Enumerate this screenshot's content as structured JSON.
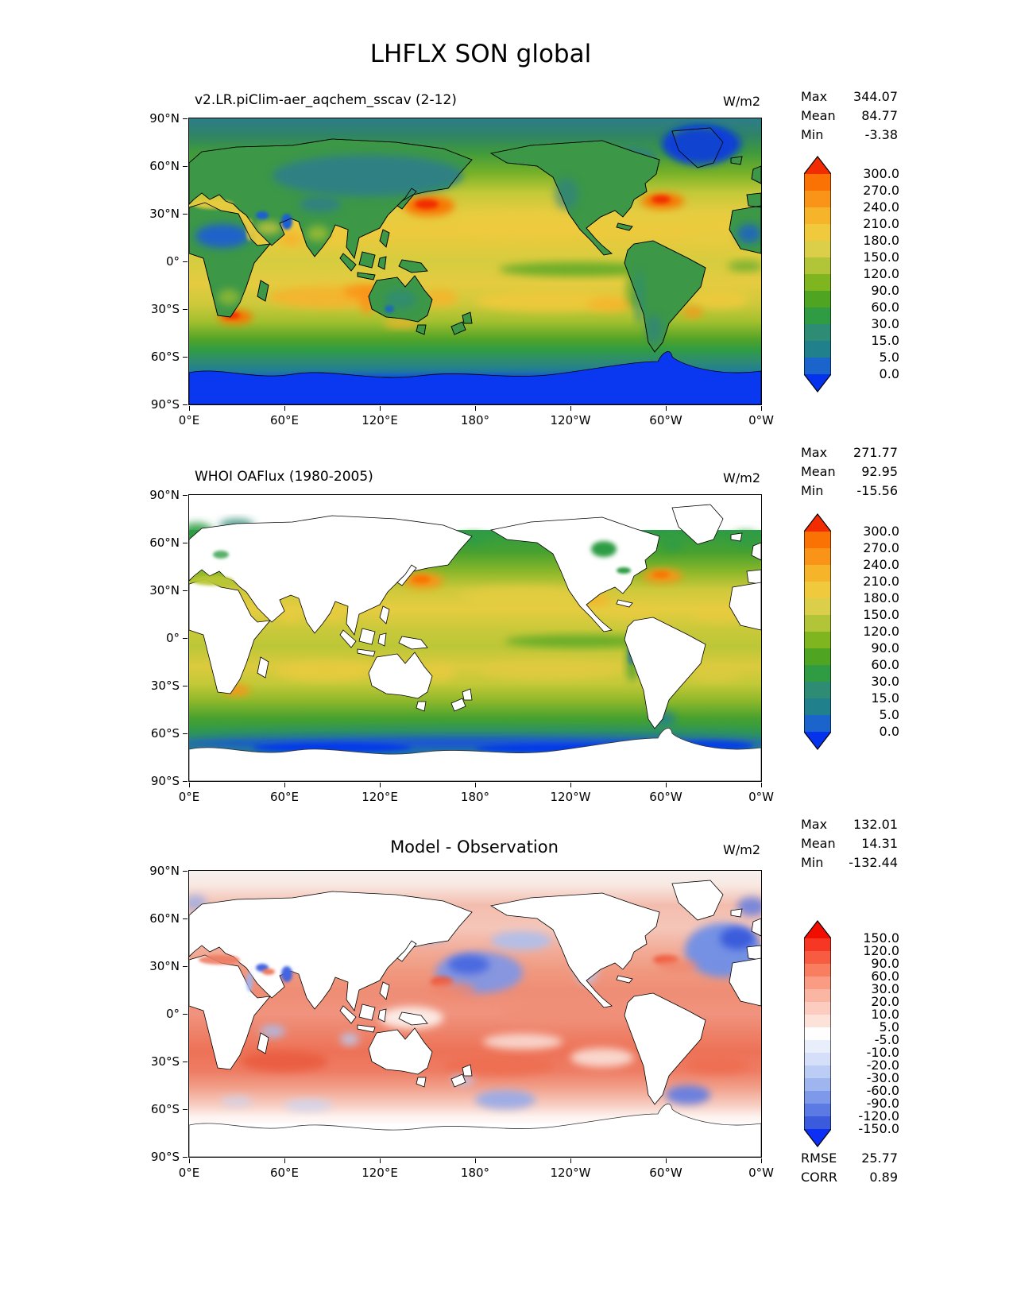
{
  "figure": {
    "title": "LHFLX SON global",
    "background": "#ffffff"
  },
  "axes": {
    "lon_ticks": [
      "0°E",
      "60°E",
      "120°E",
      "180°",
      "120°W",
      "60°W",
      "0°W"
    ],
    "lat_ticks": [
      "90°N",
      "60°N",
      "30°N",
      "0°",
      "30°S",
      "60°S",
      "90°S"
    ]
  },
  "panels": [
    {
      "title": "v2.LR.piClim-aer_aqchem_sscav (2-12)",
      "units": "W/m2",
      "stats": [
        {
          "label": "Max",
          "value": "344.07"
        },
        {
          "label": "Mean",
          "value": "84.77"
        },
        {
          "label": "Min",
          "value": "-3.38"
        }
      ]
    },
    {
      "title": "WHOI OAFlux (1980-2005)",
      "units": "W/m2",
      "stats": [
        {
          "label": "Max",
          "value": "271.77"
        },
        {
          "label": "Mean",
          "value": "92.95"
        },
        {
          "label": "Min",
          "value": "-15.56"
        }
      ]
    },
    {
      "title": "Model - Observation",
      "units": "W/m2",
      "stats": [
        {
          "label": "Max",
          "value": "132.01"
        },
        {
          "label": "Mean",
          "value": "14.31"
        },
        {
          "label": "Min",
          "value": "-132.44"
        }
      ],
      "metrics": [
        {
          "label": "RMSE",
          "value": "25.77"
        },
        {
          "label": "CORR",
          "value": "0.89"
        }
      ]
    }
  ],
  "colorbars": [
    {
      "ticks": [
        "300.0",
        "270.0",
        "240.0",
        "210.0",
        "180.0",
        "150.0",
        "120.0",
        "90.0",
        "60.0",
        "30.0",
        "15.0",
        "5.0",
        "0.0"
      ],
      "colors": [
        "#f22b00",
        "#fa7204",
        "#fa9419",
        "#f6b42b",
        "#f0c93c",
        "#dbce49",
        "#b2c437",
        "#7fb51f",
        "#4fa521",
        "#2f9c44",
        "#2e8b74",
        "#20808c",
        "#1b64cc",
        "#0533ed"
      ]
    },
    {
      "ticks": [
        "300.0",
        "270.0",
        "240.0",
        "210.0",
        "180.0",
        "150.0",
        "120.0",
        "90.0",
        "60.0",
        "30.0",
        "15.0",
        "5.0",
        "0.0"
      ],
      "colors": [
        "#f22b00",
        "#fa7204",
        "#fa9419",
        "#f6b42b",
        "#f0c93c",
        "#dbce49",
        "#b2c437",
        "#7fb51f",
        "#4fa521",
        "#2f9c44",
        "#2e8b74",
        "#20808c",
        "#1b64cc",
        "#0533ed"
      ]
    },
    {
      "ticks": [
        "150.0",
        "120.0",
        "90.0",
        "60.0",
        "30.0",
        "20.0",
        "10.0",
        "5.0",
        "-5.0",
        "-10.0",
        "-20.0",
        "-30.0",
        "-60.0",
        "-90.0",
        "-120.0",
        "-150.0"
      ],
      "colors": [
        "#f10e00",
        "#f63723",
        "#f75b41",
        "#f97e60",
        "#fa9c83",
        "#fbb5a3",
        "#fcccc0",
        "#fde2da",
        "#fefefe",
        "#e9eefb",
        "#d5dff9",
        "#bccdf5",
        "#9fb5f0",
        "#7e98ea",
        "#5c7ae4",
        "#3a5bdc",
        "#0c2ff5"
      ]
    }
  ],
  "chart_data": [
    {
      "type": "heatmap",
      "title": "v2.LR.piClim-aer_aqchem_sscav (2-12)",
      "variable": "LHFLX",
      "season": "SON",
      "region": "global",
      "units": "W/m2",
      "x_ticks": [
        "0°E",
        "60°E",
        "120°E",
        "180°",
        "120°W",
        "60°W",
        "0°W"
      ],
      "y_ticks": [
        "90°N",
        "60°N",
        "30°N",
        "0°",
        "30°S",
        "60°S",
        "90°S"
      ],
      "levels": [
        0.0,
        5.0,
        15.0,
        30.0,
        60.0,
        90.0,
        120.0,
        150.0,
        180.0,
        210.0,
        240.0,
        270.0,
        300.0
      ],
      "stats": {
        "max": 344.07,
        "mean": 84.77,
        "min": -3.38
      }
    },
    {
      "type": "heatmap",
      "title": "WHOI OAFlux (1980-2005)",
      "variable": "LHFLX",
      "season": "SON",
      "region": "global",
      "units": "W/m2",
      "x_ticks": [
        "0°E",
        "60°E",
        "120°E",
        "180°",
        "120°W",
        "60°W",
        "0°W"
      ],
      "y_ticks": [
        "90°N",
        "60°N",
        "30°N",
        "0°",
        "30°S",
        "60°S",
        "90°S"
      ],
      "levels": [
        0.0,
        5.0,
        15.0,
        30.0,
        60.0,
        90.0,
        120.0,
        150.0,
        180.0,
        210.0,
        240.0,
        270.0,
        300.0
      ],
      "stats": {
        "max": 271.77,
        "mean": 92.95,
        "min": -15.56
      }
    },
    {
      "type": "heatmap",
      "title": "Model - Observation",
      "variable": "LHFLX difference",
      "season": "SON",
      "region": "global",
      "units": "W/m2",
      "x_ticks": [
        "0°E",
        "60°E",
        "120°E",
        "180°",
        "120°W",
        "60°W",
        "0°W"
      ],
      "y_ticks": [
        "90°N",
        "60°N",
        "30°N",
        "0°",
        "30°S",
        "60°S",
        "90°S"
      ],
      "levels": [
        -150.0,
        -120.0,
        -90.0,
        -60.0,
        -30.0,
        -20.0,
        -10.0,
        -5.0,
        5.0,
        10.0,
        20.0,
        30.0,
        60.0,
        90.0,
        120.0,
        150.0
      ],
      "stats": {
        "max": 132.01,
        "mean": 14.31,
        "min": -132.44
      },
      "rmse": 25.77,
      "corr": 0.89
    }
  ]
}
